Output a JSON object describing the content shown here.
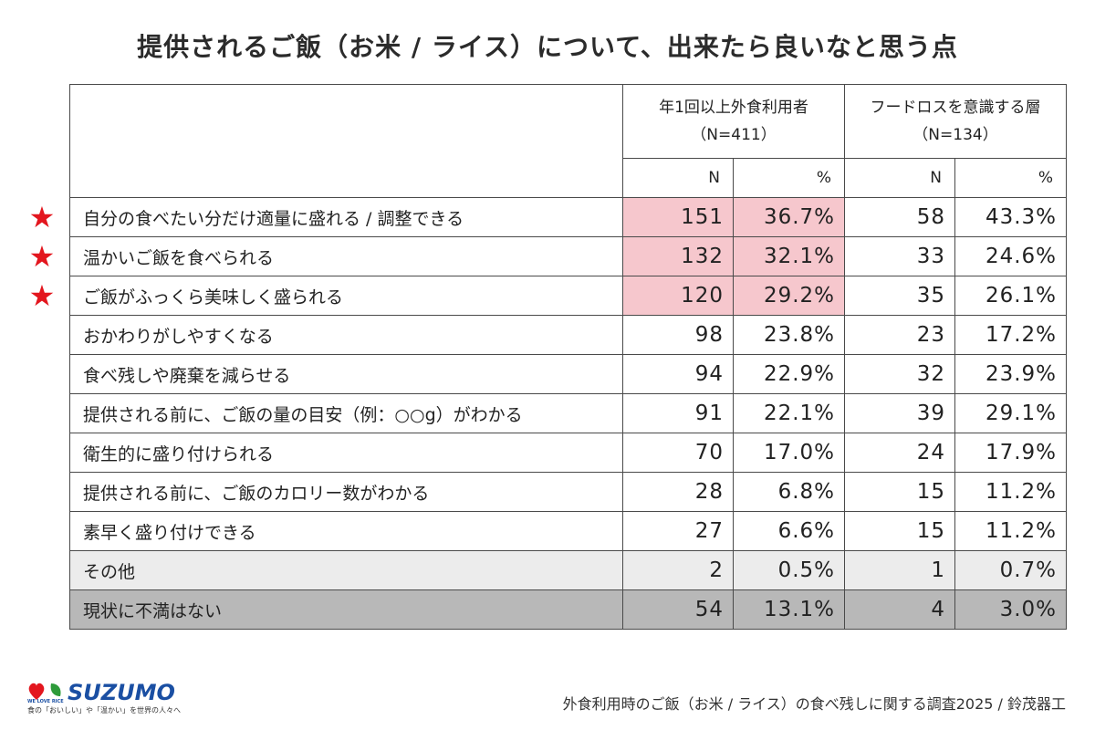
{
  "title": "提供されるご飯（お米 / ライス）について、出来たら良いなと思う点",
  "header": {
    "group1_line1": "年1回以上外食利用者",
    "group1_line2": "（N=411）",
    "group2_line1": "フードロスを意識する層",
    "group2_line2": "（N=134）",
    "n_label": "N",
    "pct_label": "%"
  },
  "star_glyph": "★",
  "chart_data": {
    "type": "table",
    "title": "提供されるご飯（お米 / ライス）について、出来たら良いなと思う点",
    "groups": [
      {
        "name": "年1回以上外食利用者",
        "sample": "（N=411）"
      },
      {
        "name": "フードロスを意識する層",
        "sample": "（N=134）"
      }
    ],
    "columns": [
      "N",
      "%",
      "N",
      "%"
    ],
    "rows": [
      {
        "label": "自分の食べたい分だけ適量に盛れる / 調整できる",
        "values": [
          "151",
          "36.7%",
          "58",
          "43.3%"
        ],
        "starred": true,
        "style": "highlight"
      },
      {
        "label": "温かいご飯を食べられる",
        "values": [
          "132",
          "32.1%",
          "33",
          "24.6%"
        ],
        "starred": true,
        "style": "highlight"
      },
      {
        "label": "ご飯がふっくら美味しく盛られる",
        "values": [
          "120",
          "29.2%",
          "35",
          "26.1%"
        ],
        "starred": true,
        "style": "highlight"
      },
      {
        "label": "おかわりがしやすくなる",
        "values": [
          "98",
          "23.8%",
          "23",
          "17.2%"
        ],
        "starred": false,
        "style": "normal"
      },
      {
        "label": "食べ残しや廃棄を減らせる",
        "values": [
          "94",
          "22.9%",
          "32",
          "23.9%"
        ],
        "starred": false,
        "style": "normal"
      },
      {
        "label": "提供される前に、ご飯の量の目安（例：○○g）がわかる",
        "values": [
          "91",
          "22.1%",
          "39",
          "29.1%"
        ],
        "starred": false,
        "style": "normal"
      },
      {
        "label": "衛生的に盛り付けられる",
        "values": [
          "70",
          "17.0%",
          "24",
          "17.9%"
        ],
        "starred": false,
        "style": "normal"
      },
      {
        "label": "提供される前に、ご飯のカロリー数がわかる",
        "values": [
          "28",
          "6.8%",
          "15",
          "11.2%"
        ],
        "starred": false,
        "style": "normal"
      },
      {
        "label": "素早く盛り付けできる",
        "values": [
          "27",
          "6.6%",
          "15",
          "11.2%"
        ],
        "starred": false,
        "style": "normal"
      },
      {
        "label": "その他",
        "values": [
          "2",
          "0.5%",
          "1",
          "0.7%"
        ],
        "starred": false,
        "style": "other"
      },
      {
        "label": "現状に不満はない",
        "values": [
          "54",
          "13.1%",
          "4",
          "3.0%"
        ],
        "starred": false,
        "style": "none"
      }
    ],
    "colors": {
      "highlight": "#f6c7cd",
      "other": "#ececec",
      "none": "#b8b8b8",
      "star": "#e3161e"
    }
  },
  "logo": {
    "brand": "SUZUMO",
    "we_love_rice": "WE LOVE RICE",
    "tagline": "食の「おいしい」や「温かい」を世界の人々へ"
  },
  "footer": "外食利用時のご飯（お米 / ライス）の食べ残しに関する調査2025 / 鈴茂器工"
}
